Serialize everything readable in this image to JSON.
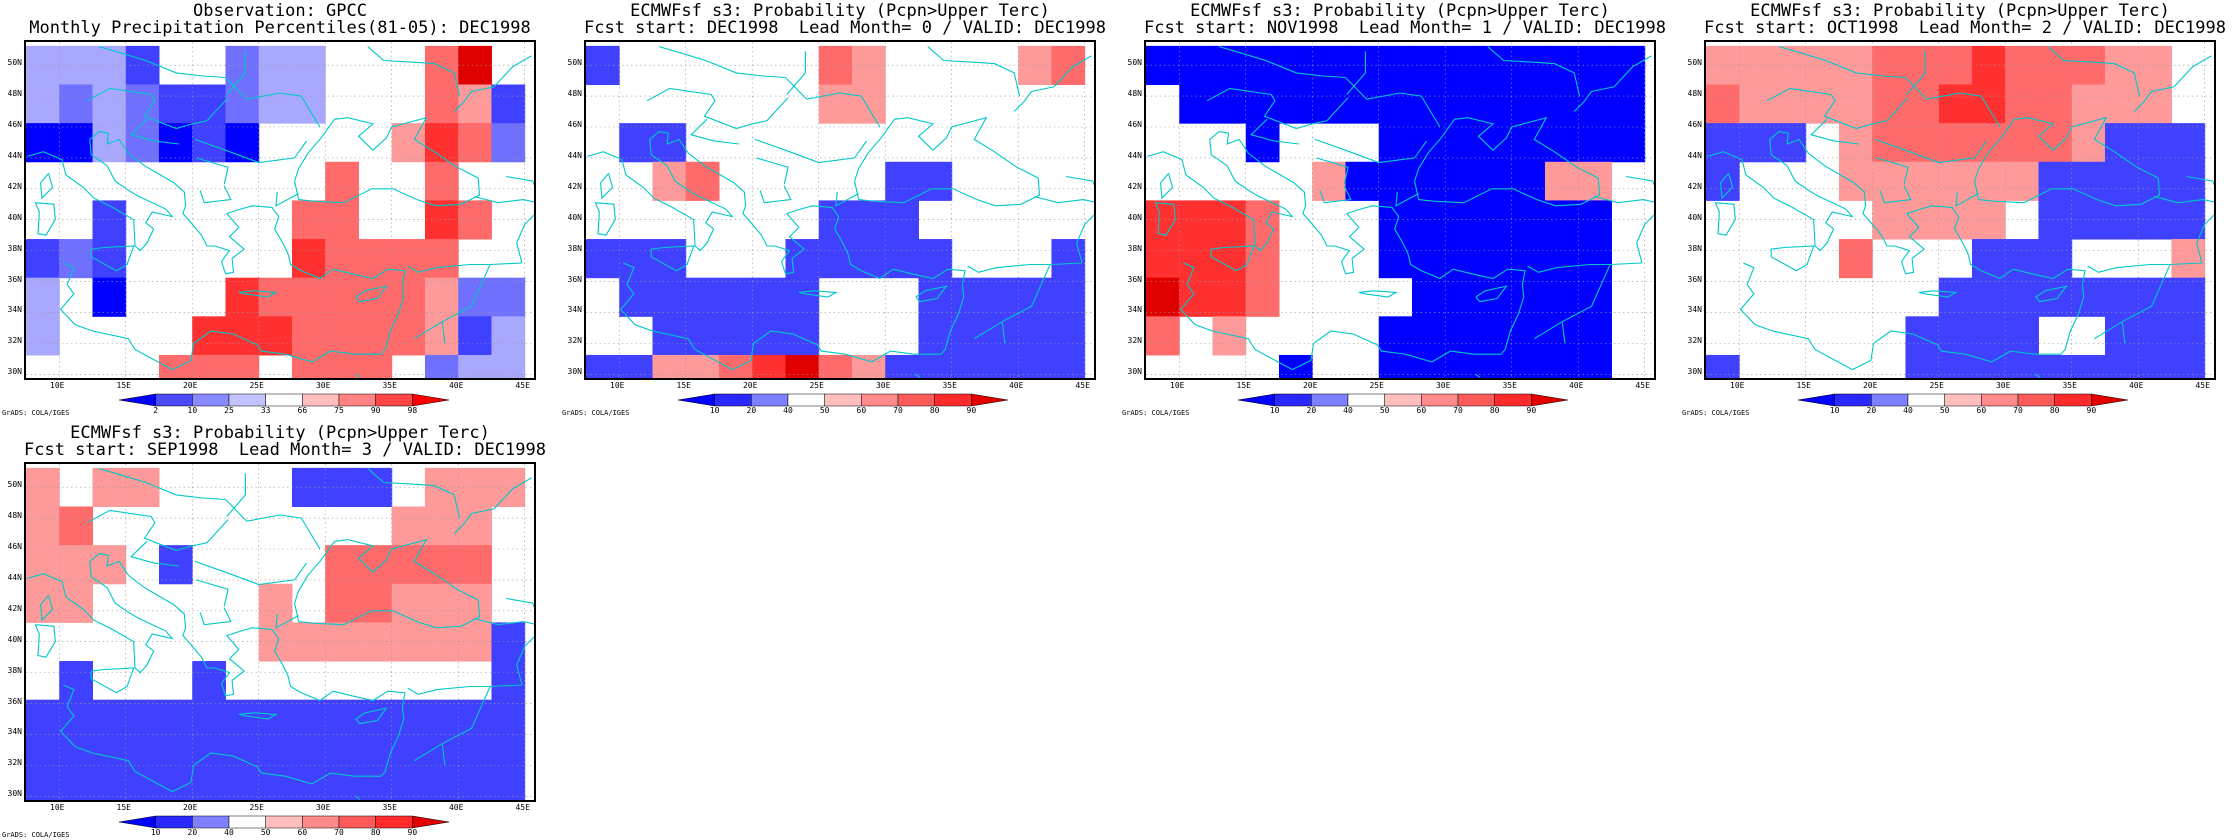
{
  "panels": [
    {
      "id": "obs",
      "title1": "Observation: GPCC",
      "title2": "Monthly Precipitation Percentiles(81-05): DEC1998",
      "colorbar_labels": [
        "2",
        "10",
        "25",
        "33",
        "66",
        "75",
        "90",
        "98"
      ],
      "colorbar_colors": [
        "#0000ff",
        "#4a4aff",
        "#8a8aff",
        "#c2c2ff",
        "#ffffff",
        "#ffbebe",
        "#ff8282",
        "#ff4646",
        "#ff0000"
      ],
      "credit": "GrADS: COLA/IGES"
    },
    {
      "id": "lead0",
      "title1": "ECMWFsf s3: Probability (Pcpn>Upper Terc)",
      "title2": "Fcst start: DEC1998  Lead Month= 0 / VALID: DEC1998",
      "colorbar_labels": [
        "10",
        "20",
        "40",
        "50",
        "60",
        "70",
        "80",
        "90"
      ],
      "colorbar_colors": [
        "#0000ff",
        "#2828ff",
        "#8080ff",
        "#ffffff",
        "#ffbfbf",
        "#ff8a8a",
        "#ff5a5a",
        "#ff2a2a",
        "#e00000"
      ],
      "credit": "GrADS: COLA/IGES"
    },
    {
      "id": "lead1",
      "title1": "ECMWFsf s3: Probability (Pcpn>Upper Terc)",
      "title2": "Fcst start: NOV1998  Lead Month= 1 / VALID: DEC1998",
      "colorbar_labels": [
        "10",
        "20",
        "40",
        "50",
        "60",
        "70",
        "80",
        "90"
      ],
      "colorbar_colors": [
        "#0000ff",
        "#2828ff",
        "#8080ff",
        "#ffffff",
        "#ffbfbf",
        "#ff8a8a",
        "#ff5a5a",
        "#ff2a2a",
        "#e00000"
      ],
      "credit": "GrADS: COLA/IGES"
    },
    {
      "id": "lead2",
      "title1": "ECMWFsf s3: Probability (Pcpn>Upper Terc)",
      "title2": "Fcst start: OCT1998  Lead Month= 2 / VALID: DEC1998",
      "colorbar_labels": [
        "10",
        "20",
        "40",
        "50",
        "60",
        "70",
        "80",
        "90"
      ],
      "colorbar_colors": [
        "#0000ff",
        "#2828ff",
        "#8080ff",
        "#ffffff",
        "#ffbfbf",
        "#ff8a8a",
        "#ff5a5a",
        "#ff2a2a",
        "#e00000"
      ],
      "credit": "GrADS: COLA/IGES"
    },
    {
      "id": "lead3",
      "title1": "ECMWFsf s3: Probability (Pcpn>Upper Terc)",
      "title2": "Fcst start: SEP1998  Lead Month= 3 / VALID: DEC1998",
      "colorbar_labels": [
        "10",
        "20",
        "40",
        "50",
        "60",
        "70",
        "80",
        "90"
      ],
      "colorbar_colors": [
        "#0000ff",
        "#2828ff",
        "#8080ff",
        "#ffffff",
        "#ffbfbf",
        "#ff8a8a",
        "#ff5a5a",
        "#ff2a2a",
        "#e00000"
      ],
      "credit": "GrADS: COLA/IGES"
    }
  ],
  "lat_labels": [
    "50N",
    "48N",
    "46N",
    "44N",
    "42N",
    "40N",
    "38N",
    "36N",
    "34N",
    "32N",
    "30N"
  ],
  "lon_labels": [
    "10E",
    "15E",
    "20E",
    "25E",
    "30E",
    "35E",
    "40E",
    "45E"
  ],
  "coast_color": "#00c8c8",
  "grid": {
    "lon_start": 7.5,
    "lon_step": 2.5,
    "lat_top": 51.25,
    "lat_step": 2.5,
    "ncols": 15,
    "nrows": 9,
    "legend": "0=white, 1..4 blue shades light->dark, 5..8 red shades light->dark",
    "obs": [
      "1 1 1 3 0 0 2 1 1 0 0 0 6 8 0",
      "1 2 1 2 3 3 2 1 1 0 0 0 6 5 3",
      "4 4 1 2 4 3 4 0 0 0 0 5 7 6 2",
      "0 0 0 0 0 0 0 0 0 6 0 0 6 0 0",
      "0 0 3 0 0 0 0 0 6 6 0 0 7 6 0",
      "3 2 3 0 0 0 0 0 7 6 6 6 6 0 0",
      "1 0 4 0 0 0 7 6 6 6 6 6 5 2 2",
      "1 0 0 0 0 7 7 7 6 6 6 6 5 3 1",
      "0 0 0 0 6 6 6 0 6 6 6 0 2 1 1"
    ],
    "lead0": [
      "3 0 0 0 0 0 0 6 5 0 0 0 0 5 6",
      "0 0 0 0 0 0 0 5 5 0 0 0 0 0 0",
      "0 3 3 0 0 0 0 0 0 0 0 0 0 0 0",
      "0 0 5 6 0 0 0 0 0 3 3 0 0 0 0",
      "0 0 0 0 0 0 0 3 3 3 0 0 0 0 0",
      "3 3 3 0 0 0 3 3 3 3 3 0 0 0 3",
      "0 3 3 3 3 3 3 0 0 0 3 3 3 3 3",
      "0 0 3 3 3 3 3 0 0 0 3 3 3 3 3",
      "3 3 5 5 6 7 8 6 5 3 3 3 3 3 3"
    ],
    "lead1": [
      "4 4 4 4 4 4 4 4 4 4 4 4 4 4 4",
      "0 4 4 4 4 4 4 4 4 4 4 4 4 4 4",
      "0 0 0 4 0 0 0 4 4 4 4 4 4 4 4",
      "0 0 0 0 0 5 4 4 4 4 4 4 5 5 0",
      "7 7 7 6 0 0 0 4 4 4 4 4 4 4 0",
      "7 7 7 6 0 0 0 4 4 4 4 4 4 4 0",
      "8 7 7 6 0 0 0 0 4 4 4 4 4 4 0",
      "6 0 5 0 0 0 0 4 4 4 4 4 4 4 0",
      "0 0 0 0 4 0 0 4 4 4 4 4 4 4 0"
    ],
    "lead2": [
      "5 5 5 5 5 6 6 6 7 6 6 6 5 5 0",
      "6 5 5 5 5 6 6 7 7 6 6 5 5 5 0",
      "3 3 3 0 5 6 6 6 6 6 6 5 3 3 3",
      "3 0 0 0 5 5 5 5 5 5 3 3 3 3 3",
      "0 0 0 0 0 5 5 5 5 0 3 3 3 3 3",
      "0 0 0 0 6 0 0 0 3 3 3 0 0 0 5",
      "0 0 0 0 0 0 0 3 3 3 3 3 3 3 3",
      "0 0 0 0 0 0 3 3 3 3 0 0 3 3 3",
      "3 0 0 0 0 0 3 3 3 3 3 3 3 3 3"
    ],
    "lead3": [
      "5 0 5 5 0 0 0 0 3 3 3 0 5 5 5",
      "5 6 0 0 0 0 0 0 0 0 0 5 5 5 0",
      "5 5 5 0 3 0 0 0 0 6 6 6 6 6 0",
      "5 5 0 0 0 0 0 5 0 6 6 5 5 5 0",
      "0 0 0 0 0 0 0 5 5 5 5 5 5 5 3",
      "0 3 0 0 0 3 0 0 0 0 0 0 0 0 3",
      "3 3 3 3 3 3 3 3 3 3 3 3 3 3 3",
      "3 3 3 3 3 3 3 3 3 3 3 3 3 3 3",
      "3 3 3 3 3 3 3 3 3 3 3 3 3 3 3"
    ]
  }
}
